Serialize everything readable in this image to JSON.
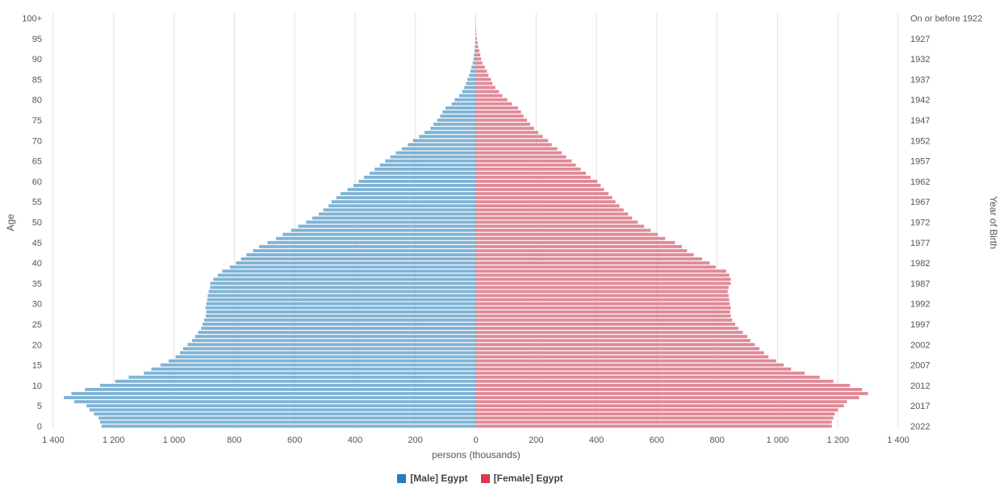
{
  "chart_data": {
    "type": "bar",
    "orientation": "horizontal-population-pyramid",
    "xlabel": "persons (thousands)",
    "ylabel": "Age",
    "y2label": "Year of Birth",
    "xlim": [
      -1400,
      1400
    ],
    "x_ticks": [
      -1400,
      -1200,
      -1000,
      -800,
      -600,
      -400,
      -200,
      0,
      200,
      400,
      600,
      800,
      1000,
      1200,
      1400
    ],
    "x_tick_labels": [
      "1 400",
      "1 200",
      "1 000",
      "800",
      "600",
      "400",
      "200",
      "0",
      "200",
      "400",
      "600",
      "800",
      "1 000",
      "1 200",
      "1 400"
    ],
    "age_tick_labels": [
      "0",
      "5",
      "10",
      "15",
      "20",
      "25",
      "30",
      "35",
      "40",
      "45",
      "50",
      "55",
      "60",
      "65",
      "70",
      "75",
      "80",
      "85",
      "90",
      "95",
      "100+"
    ],
    "year_tick_labels": [
      "2022",
      "2017",
      "2012",
      "2007",
      "2002",
      "1997",
      "1992",
      "1987",
      "1982",
      "1977",
      "1972",
      "1967",
      "1962",
      "1957",
      "1952",
      "1947",
      "1942",
      "1937",
      "1932",
      "1927",
      "On or before 1922"
    ],
    "grid": true,
    "legend_position": "bottom-center",
    "ages": [
      0,
      1,
      2,
      3,
      4,
      5,
      6,
      7,
      8,
      9,
      10,
      11,
      12,
      13,
      14,
      15,
      16,
      17,
      18,
      19,
      20,
      21,
      22,
      23,
      24,
      25,
      26,
      27,
      28,
      29,
      30,
      31,
      32,
      33,
      34,
      35,
      36,
      37,
      38,
      39,
      40,
      41,
      42,
      43,
      44,
      45,
      46,
      47,
      48,
      49,
      50,
      51,
      52,
      53,
      54,
      55,
      56,
      57,
      58,
      59,
      60,
      61,
      62,
      63,
      64,
      65,
      66,
      67,
      68,
      69,
      70,
      71,
      72,
      73,
      74,
      75,
      76,
      77,
      78,
      79,
      80,
      81,
      82,
      83,
      84,
      85,
      86,
      87,
      88,
      89,
      90,
      91,
      92,
      93,
      94,
      95,
      96,
      97,
      98,
      99,
      100
    ],
    "series": [
      {
        "name": "[Male] Egypt",
        "color": "#7fb3d5",
        "legend_color": "#2b7bba",
        "values": [
          1240,
          1245,
          1250,
          1265,
          1280,
          1290,
          1330,
          1365,
          1340,
          1295,
          1245,
          1195,
          1150,
          1100,
          1075,
          1045,
          1018,
          995,
          980,
          970,
          955,
          940,
          930,
          920,
          910,
          905,
          900,
          895,
          893,
          895,
          893,
          890,
          888,
          885,
          880,
          880,
          870,
          855,
          840,
          815,
          795,
          778,
          760,
          738,
          718,
          690,
          662,
          640,
          612,
          588,
          562,
          542,
          520,
          505,
          488,
          478,
          462,
          448,
          425,
          405,
          388,
          370,
          352,
          335,
          318,
          300,
          283,
          265,
          245,
          225,
          208,
          188,
          170,
          150,
          140,
          128,
          118,
          110,
          100,
          80,
          70,
          55,
          45,
          38,
          32,
          28,
          22,
          18,
          14,
          10,
          8,
          6,
          4,
          3,
          2,
          1,
          1,
          0.5,
          0.3,
          0.2,
          0.2
        ]
      },
      {
        "name": "[Female] Egypt",
        "color": "#e08a97",
        "legend_color": "#d63b4e",
        "values": [
          1180,
          1180,
          1185,
          1190,
          1200,
          1220,
          1230,
          1270,
          1300,
          1280,
          1240,
          1185,
          1140,
          1090,
          1045,
          1020,
          995,
          970,
          955,
          940,
          925,
          910,
          900,
          885,
          870,
          860,
          850,
          845,
          843,
          845,
          842,
          840,
          838,
          835,
          838,
          845,
          845,
          840,
          830,
          795,
          775,
          750,
          722,
          700,
          683,
          660,
          628,
          603,
          580,
          558,
          537,
          518,
          505,
          490,
          476,
          463,
          452,
          440,
          425,
          414,
          403,
          380,
          365,
          348,
          332,
          318,
          300,
          285,
          270,
          252,
          240,
          222,
          207,
          193,
          180,
          170,
          158,
          150,
          140,
          120,
          105,
          88,
          77,
          65,
          55,
          50,
          42,
          37,
          30,
          22,
          18,
          15,
          12,
          8,
          6,
          4,
          2,
          1.5,
          1,
          0.5,
          0.4
        ]
      }
    ]
  }
}
